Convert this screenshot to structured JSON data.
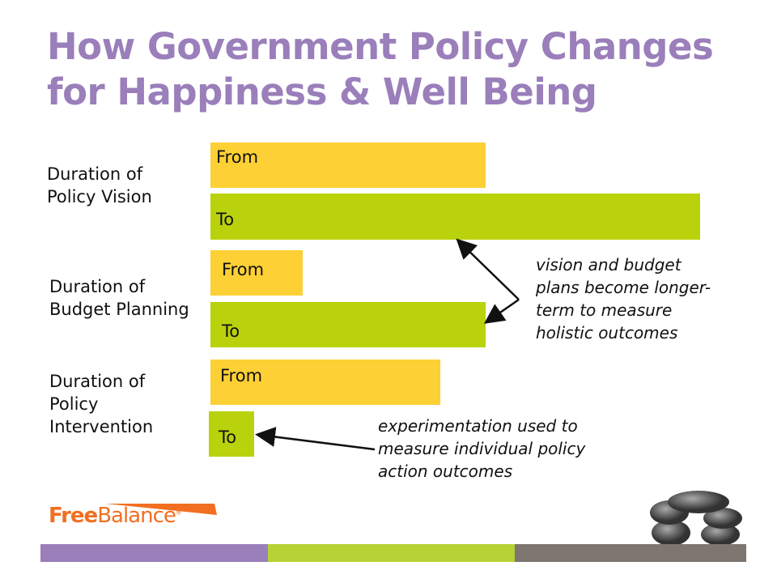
{
  "title": {
    "line1": "How Government Policy Changes",
    "line2": "for Happiness & Well Being"
  },
  "rows": [
    {
      "label_lines": [
        "Duration of",
        "Policy Vision"
      ],
      "from": "From",
      "to": "To"
    },
    {
      "label_lines": [
        "Duration of",
        "Budget Planning"
      ],
      "from": "From",
      "to": "To"
    },
    {
      "label_lines": [
        "Duration of",
        "Policy",
        "Intervention"
      ],
      "from": "From",
      "to": "To"
    }
  ],
  "notes": {
    "longer": [
      "vision and budget",
      "plans become longer-",
      "term to measure",
      "holistic outcomes"
    ],
    "experiment": [
      "experimentation used to",
      "measure individual policy",
      "action outcomes"
    ]
  },
  "logo": {
    "text_bold": "Free",
    "text_light": "Balance",
    "registered": "®"
  },
  "colors": {
    "title": "#9A7FBB",
    "from": "#FDD035",
    "to": "#B9D20C",
    "logo": "#F26F21"
  }
}
